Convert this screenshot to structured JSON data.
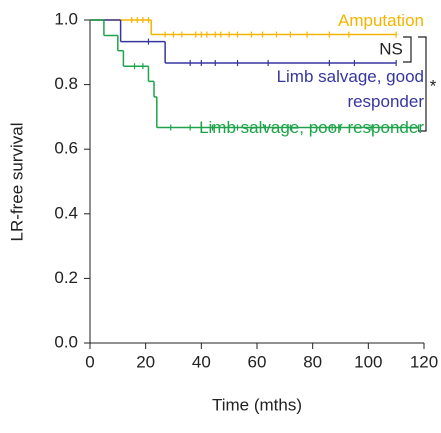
{
  "chart_data": {
    "type": "km",
    "xlabel": "Time (mths)",
    "ylabel": "LR-free survival",
    "xlim": [
      0,
      120
    ],
    "xticks": [
      0,
      20,
      40,
      60,
      80,
      100,
      120
    ],
    "ylim": [
      0,
      1
    ],
    "yticks": [
      {
        "value": 0,
        "label": "0.0"
      },
      0.2,
      0.4,
      0.6,
      0.8,
      {
        "value": 1,
        "label": "1.0"
      }
    ],
    "annotations": [
      "NS",
      "*"
    ],
    "series": [
      {
        "name": "Amputation",
        "color": "#f5b400",
        "x": [
          0,
          22,
          110
        ],
        "values": [
          1,
          0.955,
          0.955
        ],
        "censored_x": [
          15,
          17,
          19,
          21,
          27,
          30,
          33,
          38,
          40,
          42,
          45,
          47,
          50,
          53,
          58,
          62,
          67,
          72,
          78,
          86,
          93,
          110
        ],
        "censored_values": [
          1,
          1,
          1,
          1,
          0.955,
          0.955,
          0.955,
          0.955,
          0.955,
          0.955,
          0.955,
          0.955,
          0.955,
          0.955,
          0.955,
          0.955,
          0.955,
          0.955,
          0.955,
          0.955,
          0.955,
          0.955
        ]
      },
      {
        "name": "Limb salvage, good responder",
        "color": "#3636a0",
        "x": [
          0,
          11,
          27,
          110
        ],
        "values": [
          1,
          0.933,
          0.867,
          0.867
        ],
        "censored_x": [
          21,
          36,
          40,
          45,
          53,
          64,
          86,
          95,
          110
        ],
        "censored_values": [
          0.933,
          0.867,
          0.867,
          0.867,
          0.867,
          0.867,
          0.867,
          0.867,
          0.867
        ]
      },
      {
        "name": "Limb salvage, poor responder",
        "color": "#1fa34a",
        "x": [
          0,
          5,
          10,
          12,
          21,
          23,
          24,
          118
        ],
        "values": [
          1,
          0.952,
          0.905,
          0.857,
          0.81,
          0.762,
          0.667,
          0.667
        ],
        "censored_x": [
          16,
          19,
          29,
          36,
          44,
          53,
          63,
          72,
          87,
          90,
          101,
          118
        ],
        "censored_values": [
          0.857,
          0.857,
          0.667,
          0.667,
          0.667,
          0.667,
          0.667,
          0.667,
          0.667,
          0.667,
          0.667,
          0.667
        ]
      }
    ]
  }
}
